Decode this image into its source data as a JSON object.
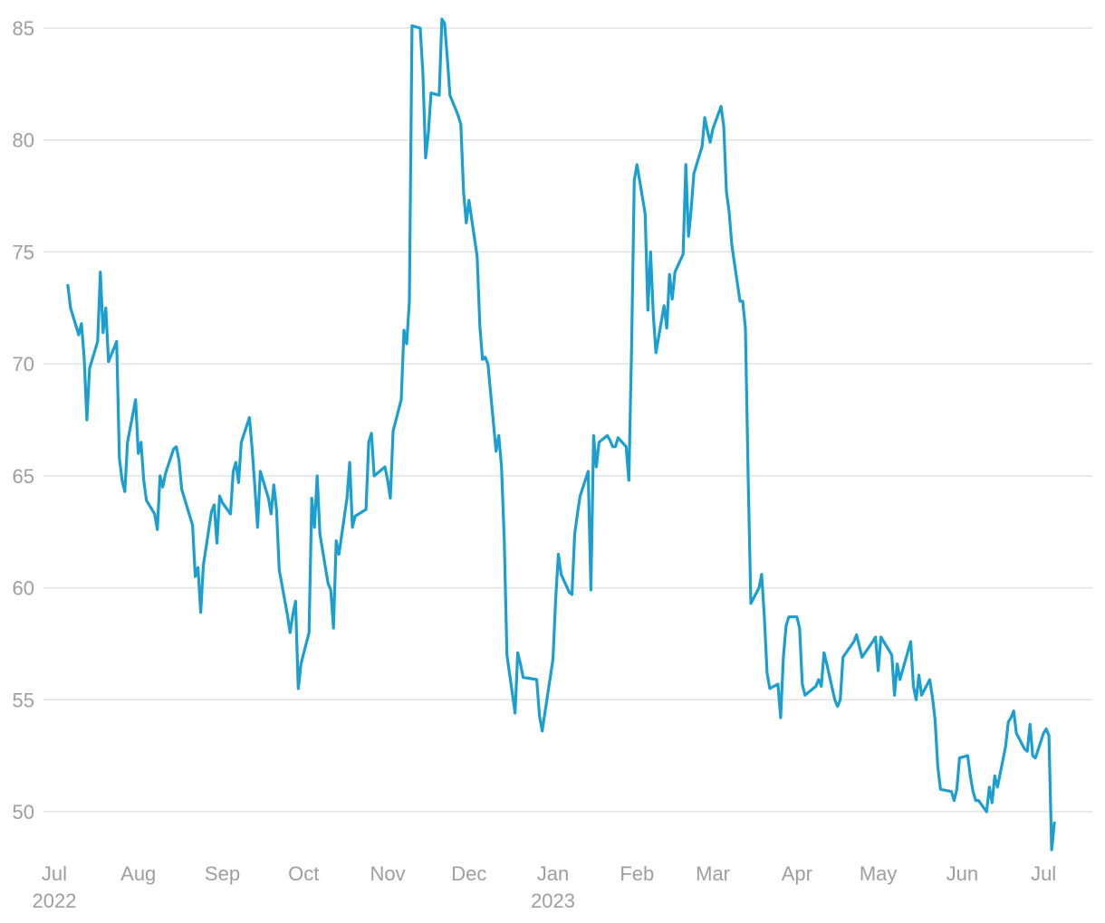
{
  "chart_data": {
    "type": "line",
    "title": "",
    "xlabel": "",
    "ylabel": "",
    "ylim": [
      48.3,
      85.3
    ],
    "y_ticks": [
      50,
      55,
      60,
      65,
      70,
      75,
      80,
      85
    ],
    "xlim": [
      "2022-06-27",
      "2023-07-19"
    ],
    "grid": "horizontal",
    "legend": "none",
    "colors": {
      "line": "#1a9fd0",
      "grid": "#e3e3e3",
      "tick_text": "#9e9e9e"
    },
    "x_ticks": [
      {
        "label": "Jul",
        "date": "2022-07-01",
        "year": "2022"
      },
      {
        "label": "Aug",
        "date": "2022-08-01",
        "year": ""
      },
      {
        "label": "Sep",
        "date": "2022-09-01",
        "year": ""
      },
      {
        "label": "Oct",
        "date": "2022-10-01",
        "year": ""
      },
      {
        "label": "Nov",
        "date": "2022-11-01",
        "year": ""
      },
      {
        "label": "Dec",
        "date": "2022-12-01",
        "year": ""
      },
      {
        "label": "Jan",
        "date": "2023-01-01",
        "year": "2023"
      },
      {
        "label": "Feb",
        "date": "2023-02-01",
        "year": ""
      },
      {
        "label": "Mar",
        "date": "2023-03-01",
        "year": ""
      },
      {
        "label": "Apr",
        "date": "2023-04-01",
        "year": ""
      },
      {
        "label": "May",
        "date": "2023-05-01",
        "year": ""
      },
      {
        "label": "Jun",
        "date": "2023-06-01",
        "year": ""
      },
      {
        "label": "Jul",
        "date": "2023-07-01",
        "year": ""
      }
    ],
    "series": [
      {
        "points": [
          [
            "2022-07-06",
            73.5
          ],
          [
            "2022-07-07",
            72.5
          ],
          [
            "2022-07-10",
            71.3
          ],
          [
            "2022-07-11",
            71.8
          ],
          [
            "2022-07-12",
            70.3
          ],
          [
            "2022-07-13",
            67.5
          ],
          [
            "2022-07-14",
            69.8
          ],
          [
            "2022-07-17",
            71.0
          ],
          [
            "2022-07-18",
            74.1
          ],
          [
            "2022-07-19",
            71.4
          ],
          [
            "2022-07-20",
            72.5
          ],
          [
            "2022-07-21",
            70.1
          ],
          [
            "2022-07-24",
            71.0
          ],
          [
            "2022-07-25",
            65.8
          ],
          [
            "2022-07-26",
            64.8
          ],
          [
            "2022-07-27",
            64.3
          ],
          [
            "2022-07-28",
            66.5
          ],
          [
            "2022-07-31",
            68.4
          ],
          [
            "2022-08-01",
            66.0
          ],
          [
            "2022-08-02",
            66.5
          ],
          [
            "2022-08-03",
            64.8
          ],
          [
            "2022-08-04",
            63.9
          ],
          [
            "2022-08-07",
            63.3
          ],
          [
            "2022-08-08",
            62.6
          ],
          [
            "2022-08-09",
            65.0
          ],
          [
            "2022-08-10",
            64.5
          ],
          [
            "2022-08-11",
            65.1
          ],
          [
            "2022-08-14",
            66.2
          ],
          [
            "2022-08-15",
            66.3
          ],
          [
            "2022-08-16",
            65.7
          ],
          [
            "2022-08-17",
            64.4
          ],
          [
            "2022-08-18",
            64.0
          ],
          [
            "2022-08-21",
            62.8
          ],
          [
            "2022-08-22",
            60.5
          ],
          [
            "2022-08-23",
            60.9
          ],
          [
            "2022-08-24",
            58.9
          ],
          [
            "2022-08-25",
            61.0
          ],
          [
            "2022-08-28",
            63.4
          ],
          [
            "2022-08-29",
            63.7
          ],
          [
            "2022-08-30",
            62.0
          ],
          [
            "2022-08-31",
            64.1
          ],
          [
            "2022-09-01",
            63.8
          ],
          [
            "2022-09-04",
            63.3
          ],
          [
            "2022-09-05",
            65.2
          ],
          [
            "2022-09-06",
            65.6
          ],
          [
            "2022-09-07",
            64.7
          ],
          [
            "2022-09-08",
            66.5
          ],
          [
            "2022-09-11",
            67.6
          ],
          [
            "2022-09-12",
            66.2
          ],
          [
            "2022-09-13",
            64.5
          ],
          [
            "2022-09-14",
            62.7
          ],
          [
            "2022-09-15",
            65.2
          ],
          [
            "2022-09-18",
            64.0
          ],
          [
            "2022-09-19",
            63.3
          ],
          [
            "2022-09-20",
            64.6
          ],
          [
            "2022-09-21",
            63.5
          ],
          [
            "2022-09-22",
            60.8
          ],
          [
            "2022-09-25",
            58.8
          ],
          [
            "2022-09-26",
            58.0
          ],
          [
            "2022-09-27",
            58.8
          ],
          [
            "2022-09-28",
            59.4
          ],
          [
            "2022-09-29",
            55.5
          ],
          [
            "2022-09-30",
            56.6
          ],
          [
            "2022-10-03",
            58.0
          ],
          [
            "2022-10-04",
            64.0
          ],
          [
            "2022-10-05",
            62.7
          ],
          [
            "2022-10-06",
            65.0
          ],
          [
            "2022-10-07",
            62.4
          ],
          [
            "2022-10-10",
            60.2
          ],
          [
            "2022-10-11",
            59.9
          ],
          [
            "2022-10-12",
            58.2
          ],
          [
            "2022-10-13",
            62.1
          ],
          [
            "2022-10-14",
            61.5
          ],
          [
            "2022-10-17",
            64.0
          ],
          [
            "2022-10-18",
            65.6
          ],
          [
            "2022-10-19",
            62.7
          ],
          [
            "2022-10-20",
            63.2
          ],
          [
            "2022-10-24",
            63.5
          ],
          [
            "2022-10-25",
            66.5
          ],
          [
            "2022-10-26",
            66.9
          ],
          [
            "2022-10-27",
            65.0
          ],
          [
            "2022-10-31",
            65.4
          ],
          [
            "2022-11-01",
            64.8
          ],
          [
            "2022-11-02",
            64.0
          ],
          [
            "2022-11-03",
            67.0
          ],
          [
            "2022-11-06",
            68.4
          ],
          [
            "2022-11-07",
            71.5
          ],
          [
            "2022-11-08",
            70.9
          ],
          [
            "2022-11-09",
            72.8
          ],
          [
            "2022-11-10",
            85.1
          ],
          [
            "2022-11-13",
            85.0
          ],
          [
            "2022-11-14",
            83.0
          ],
          [
            "2022-11-15",
            79.2
          ],
          [
            "2022-11-16",
            80.3
          ],
          [
            "2022-11-17",
            82.1
          ],
          [
            "2022-11-20",
            82.0
          ],
          [
            "2022-11-21",
            85.4
          ],
          [
            "2022-11-22",
            85.2
          ],
          [
            "2022-11-23",
            83.7
          ],
          [
            "2022-11-24",
            82.0
          ],
          [
            "2022-11-27",
            81.1
          ],
          [
            "2022-11-28",
            80.7
          ],
          [
            "2022-11-29",
            77.7
          ],
          [
            "2022-11-30",
            76.3
          ],
          [
            "2022-12-01",
            77.3
          ],
          [
            "2022-12-04",
            74.8
          ],
          [
            "2022-12-05",
            71.7
          ],
          [
            "2022-12-06",
            70.2
          ],
          [
            "2022-12-07",
            70.3
          ],
          [
            "2022-12-08",
            70.0
          ],
          [
            "2022-12-11",
            66.1
          ],
          [
            "2022-12-12",
            66.8
          ],
          [
            "2022-12-13",
            65.4
          ],
          [
            "2022-12-14",
            62.2
          ],
          [
            "2022-12-15",
            57.0
          ],
          [
            "2022-12-18",
            54.4
          ],
          [
            "2022-12-19",
            57.1
          ],
          [
            "2022-12-20",
            56.6
          ],
          [
            "2022-12-21",
            56.0
          ],
          [
            "2022-12-26",
            55.9
          ],
          [
            "2022-12-27",
            54.3
          ],
          [
            "2022-12-28",
            53.6
          ],
          [
            "2023-01-01",
            56.8
          ],
          [
            "2023-01-02",
            59.5
          ],
          [
            "2023-01-03",
            61.5
          ],
          [
            "2023-01-04",
            60.6
          ],
          [
            "2023-01-07",
            59.8
          ],
          [
            "2023-01-08",
            59.7
          ],
          [
            "2023-01-09",
            62.4
          ],
          [
            "2023-01-10",
            63.3
          ],
          [
            "2023-01-11",
            64.1
          ],
          [
            "2023-01-14",
            65.2
          ],
          [
            "2023-01-15",
            59.9
          ],
          [
            "2023-01-16",
            66.8
          ],
          [
            "2023-01-17",
            65.4
          ],
          [
            "2023-01-18",
            66.5
          ],
          [
            "2023-01-21",
            66.8
          ],
          [
            "2023-01-22",
            66.6
          ],
          [
            "2023-01-23",
            66.3
          ],
          [
            "2023-01-24",
            66.3
          ],
          [
            "2023-01-25",
            66.7
          ],
          [
            "2023-01-28",
            66.3
          ],
          [
            "2023-01-29",
            64.8
          ],
          [
            "2023-01-30",
            70.7
          ],
          [
            "2023-01-31",
            78.2
          ],
          [
            "2023-02-01",
            78.9
          ],
          [
            "2023-02-04",
            76.7
          ],
          [
            "2023-02-05",
            72.4
          ],
          [
            "2023-02-06",
            75.0
          ],
          [
            "2023-02-07",
            72.2
          ],
          [
            "2023-02-08",
            70.5
          ],
          [
            "2023-02-11",
            72.6
          ],
          [
            "2023-02-12",
            71.6
          ],
          [
            "2023-02-13",
            74.0
          ],
          [
            "2023-02-14",
            72.9
          ],
          [
            "2023-02-15",
            74.1
          ],
          [
            "2023-02-18",
            74.9
          ],
          [
            "2023-02-19",
            78.9
          ],
          [
            "2023-02-20",
            75.7
          ],
          [
            "2023-02-21",
            76.9
          ],
          [
            "2023-02-22",
            78.5
          ],
          [
            "2023-02-25",
            79.7
          ],
          [
            "2023-02-26",
            81.0
          ],
          [
            "2023-02-27",
            80.4
          ],
          [
            "2023-02-28",
            79.9
          ],
          [
            "2023-03-01",
            80.5
          ],
          [
            "2023-03-04",
            81.5
          ],
          [
            "2023-03-05",
            80.6
          ],
          [
            "2023-03-06",
            77.7
          ],
          [
            "2023-03-07",
            76.8
          ],
          [
            "2023-03-08",
            75.3
          ],
          [
            "2023-03-11",
            72.8
          ],
          [
            "2023-03-12",
            72.8
          ],
          [
            "2023-03-13",
            71.6
          ],
          [
            "2023-03-14",
            65.0
          ],
          [
            "2023-03-15",
            59.3
          ],
          [
            "2023-03-18",
            60.0
          ],
          [
            "2023-03-19",
            60.6
          ],
          [
            "2023-03-20",
            58.7
          ],
          [
            "2023-03-21",
            56.2
          ],
          [
            "2023-03-22",
            55.5
          ],
          [
            "2023-03-25",
            55.7
          ],
          [
            "2023-03-26",
            54.2
          ],
          [
            "2023-03-27",
            56.9
          ],
          [
            "2023-03-28",
            58.3
          ],
          [
            "2023-03-29",
            58.7
          ],
          [
            "2023-04-01",
            58.7
          ],
          [
            "2023-04-02",
            58.2
          ],
          [
            "2023-04-03",
            55.7
          ],
          [
            "2023-04-04",
            55.2
          ],
          [
            "2023-04-08",
            55.6
          ],
          [
            "2023-04-09",
            55.9
          ],
          [
            "2023-04-10",
            55.6
          ],
          [
            "2023-04-11",
            57.1
          ],
          [
            "2023-04-12",
            56.6
          ],
          [
            "2023-04-15",
            55.0
          ],
          [
            "2023-04-16",
            54.7
          ],
          [
            "2023-04-17",
            55.0
          ],
          [
            "2023-04-18",
            56.9
          ],
          [
            "2023-04-22",
            57.6
          ],
          [
            "2023-04-23",
            57.9
          ],
          [
            "2023-04-24",
            57.4
          ],
          [
            "2023-04-25",
            56.9
          ],
          [
            "2023-04-29",
            57.6
          ],
          [
            "2023-04-30",
            57.8
          ],
          [
            "2023-05-01",
            56.3
          ],
          [
            "2023-05-02",
            57.8
          ],
          [
            "2023-05-06",
            57.0
          ],
          [
            "2023-05-07",
            55.2
          ],
          [
            "2023-05-08",
            56.6
          ],
          [
            "2023-05-09",
            55.9
          ],
          [
            "2023-05-13",
            57.6
          ],
          [
            "2023-05-14",
            55.6
          ],
          [
            "2023-05-15",
            55.0
          ],
          [
            "2023-05-16",
            56.1
          ],
          [
            "2023-05-17",
            55.2
          ],
          [
            "2023-05-20",
            55.9
          ],
          [
            "2023-05-21",
            55.1
          ],
          [
            "2023-05-22",
            54.1
          ],
          [
            "2023-05-23",
            52.0
          ],
          [
            "2023-05-24",
            51.0
          ],
          [
            "2023-05-28",
            50.9
          ],
          [
            "2023-05-29",
            50.5
          ],
          [
            "2023-05-30",
            51.0
          ],
          [
            "2023-05-31",
            52.4
          ],
          [
            "2023-06-03",
            52.5
          ],
          [
            "2023-06-04",
            51.6
          ],
          [
            "2023-06-05",
            50.9
          ],
          [
            "2023-06-06",
            50.5
          ],
          [
            "2023-06-07",
            50.5
          ],
          [
            "2023-06-10",
            50.0
          ],
          [
            "2023-06-11",
            51.1
          ],
          [
            "2023-06-12",
            50.4
          ],
          [
            "2023-06-13",
            51.6
          ],
          [
            "2023-06-14",
            51.1
          ],
          [
            "2023-06-17",
            52.9
          ],
          [
            "2023-06-18",
            54.0
          ],
          [
            "2023-06-19",
            54.2
          ],
          [
            "2023-06-20",
            54.5
          ],
          [
            "2023-06-21",
            53.5
          ],
          [
            "2023-06-24",
            52.8
          ],
          [
            "2023-06-25",
            52.7
          ],
          [
            "2023-06-26",
            53.9
          ],
          [
            "2023-06-27",
            52.5
          ],
          [
            "2023-06-28",
            52.4
          ],
          [
            "2023-07-01",
            53.5
          ],
          [
            "2023-07-02",
            53.7
          ],
          [
            "2023-07-03",
            53.4
          ],
          [
            "2023-07-04",
            48.3
          ],
          [
            "2023-07-05",
            49.5
          ]
        ]
      }
    ]
  }
}
